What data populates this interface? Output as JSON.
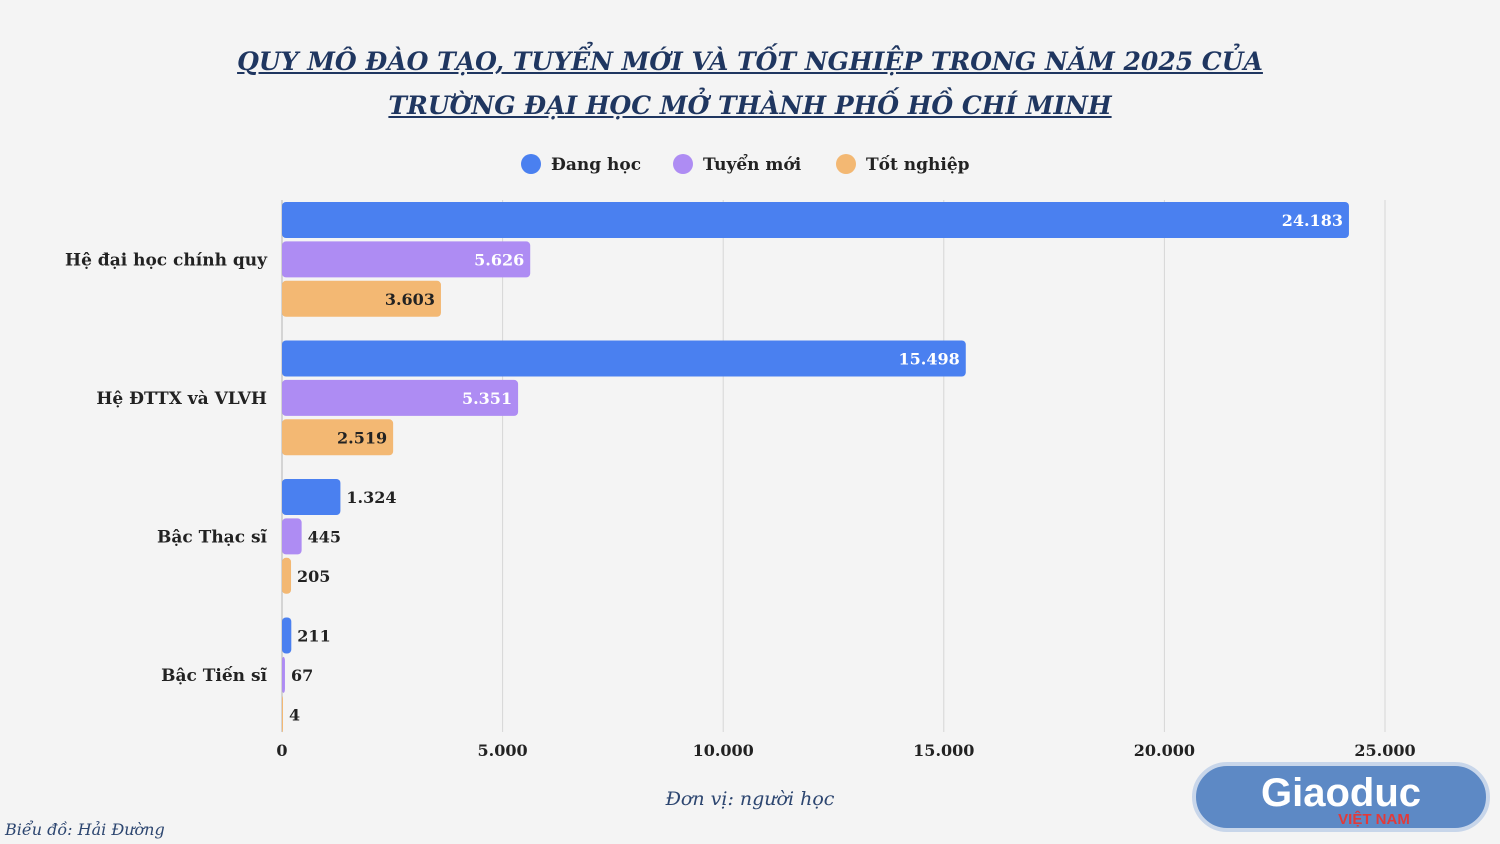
{
  "title": {
    "line1": "QUY MÔ ĐÀO TẠO, TUYỂN MỚI VÀ TỐT NGHIỆP TRONG NĂM 2025 CỦA",
    "line2": "TRƯỜNG ĐẠI HỌC MỞ THÀNH PHỐ HỒ CHÍ MINH"
  },
  "unit_note": "Đơn vị: người học",
  "credit": "Biểu đồ: Hải Đường",
  "logo": {
    "text": "Giaoduc",
    "subtext": "VIỆT NAM"
  },
  "chart_data": {
    "type": "bar",
    "orientation": "horizontal",
    "categories": [
      "Hệ đại học chính quy",
      "Hệ ĐTTX và VLVH",
      "Bậc Thạc sĩ",
      "Bậc Tiến sĩ"
    ],
    "series": [
      {
        "name": "Đang học",
        "color": "#4a80f0",
        "values": [
          24183,
          15498,
          1324,
          211
        ],
        "labels": [
          "24.183",
          "15.498",
          "1.324",
          "211"
        ]
      },
      {
        "name": "Tuyển mới",
        "color": "#ae8cf3",
        "values": [
          5626,
          5351,
          445,
          67
        ],
        "labels": [
          "5.626",
          "5.351",
          "445",
          "67"
        ]
      },
      {
        "name": "Tốt nghiệp",
        "color": "#f3b873",
        "values": [
          3603,
          2519,
          205,
          4
        ],
        "labels": [
          "3.603",
          "2.519",
          "205",
          "4"
        ]
      }
    ],
    "xlim": [
      0,
      25000
    ],
    "xticks": [
      0,
      5000,
      10000,
      15000,
      20000,
      25000
    ],
    "xtick_labels": [
      "0",
      "5.000",
      "10.000",
      "15.000",
      "20.000",
      "25.000"
    ],
    "grid": true,
    "legend": "top-center"
  }
}
